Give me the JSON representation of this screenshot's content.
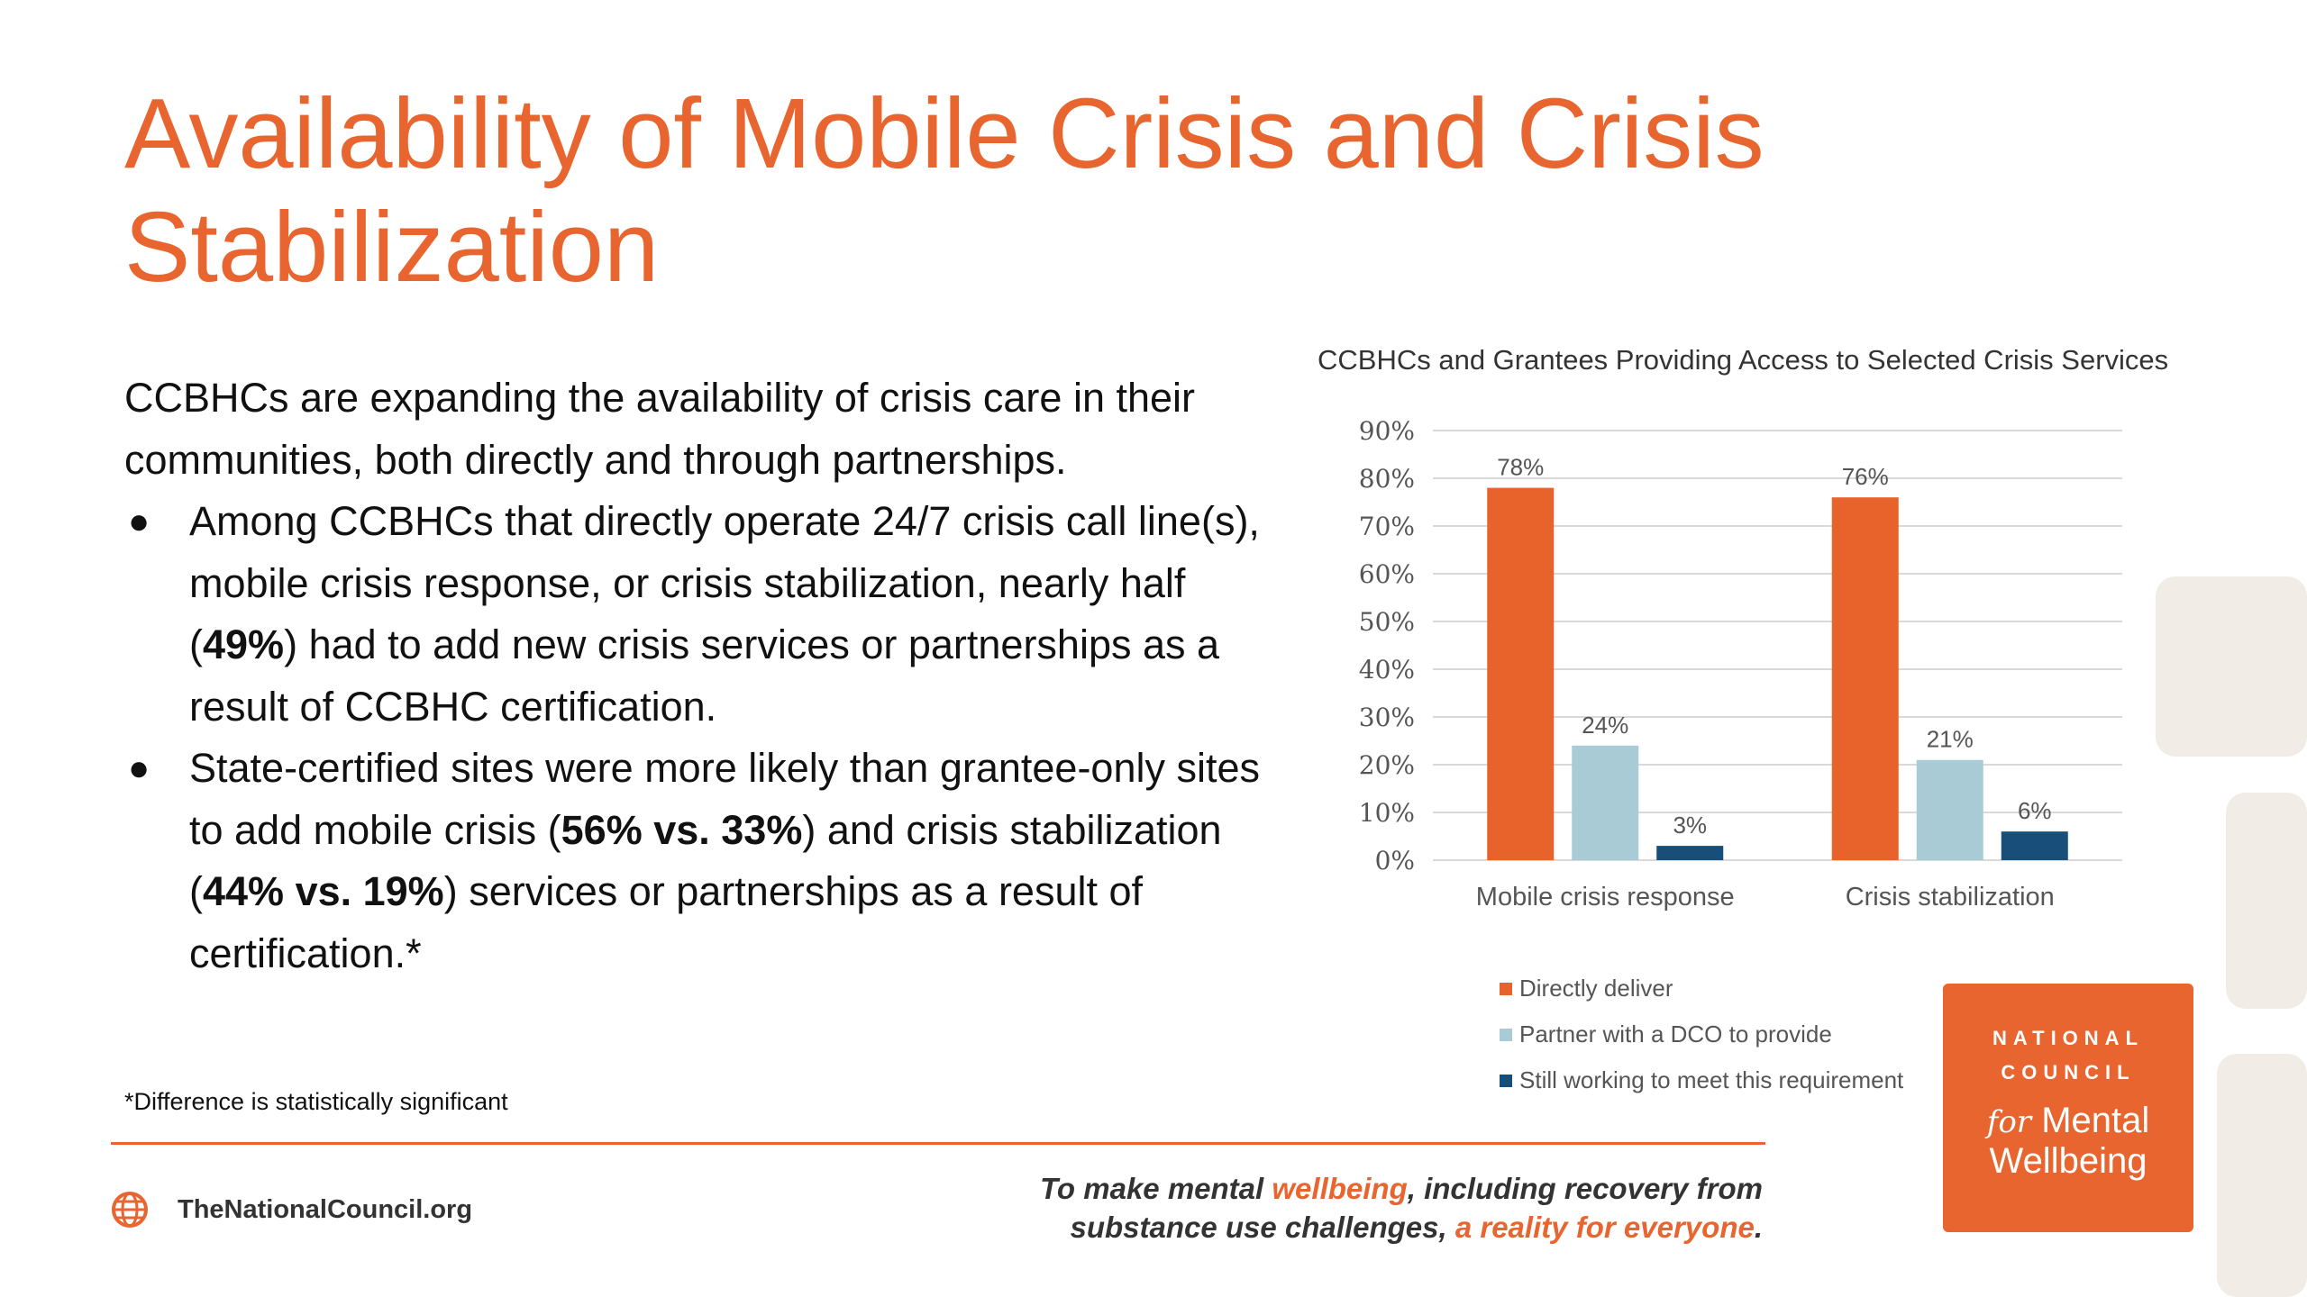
{
  "slide": {
    "title": "Availability of Mobile Crisis and Crisis Stabilization",
    "intro": "CCBHCs are expanding the availability of crisis care in their communities, both directly and through partnerships.",
    "bullet1": {
      "pre": "Among CCBHCs that directly operate 24/7 crisis call line(s), mobile crisis response, or crisis stabilization, nearly half (",
      "b1": "49%",
      "post": ") had to add new crisis services or partnerships as a result of CCBHC certification."
    },
    "bullet2": {
      "pre": "State-certified sites were more likely than grantee-only sites to add mobile crisis (",
      "b1": "56% vs. 33%",
      "mid": ") and crisis stabilization (",
      "b2": "44% vs. 19%",
      "post": ") services or partnerships as a result of certification.*"
    },
    "footnote": "*Difference is statistically significant"
  },
  "footer": {
    "website": "TheNationalCouncil.org",
    "tagline_line1_pre": "To make mental ",
    "tagline_line1_hl": "wellbeing",
    "tagline_line1_post": ", including recovery from",
    "tagline_line2_pre": "substance use challenges, ",
    "tagline_line2_hl": "a reality for everyone",
    "tagline_line2_post": "."
  },
  "logo": {
    "line1": "NATIONAL",
    "line2": "COUNCIL",
    "for_word": "for",
    "line3": "Mental",
    "line4": "Wellbeing"
  },
  "colors": {
    "accent": "#E8652F",
    "series_directly": "#E8622C",
    "series_partner": "#A9CBD6",
    "series_working": "#174E7A"
  },
  "chart_data": {
    "type": "bar",
    "title": "CCBHCs and Grantees Providing Access to Selected Crisis Services",
    "categories": [
      "Mobile crisis response",
      "Crisis stabilization"
    ],
    "series": [
      {
        "name": "Directly deliver",
        "values": [
          78,
          76
        ],
        "labels": [
          "78%",
          "76%"
        ]
      },
      {
        "name": "Partner with a DCO to provide",
        "values": [
          24,
          21
        ],
        "labels": [
          "24%",
          "21%"
        ]
      },
      {
        "name": "Still working to meet this requirement",
        "values": [
          3,
          6
        ],
        "labels": [
          "3%",
          "6%"
        ]
      }
    ],
    "y_ticks": [
      "0%",
      "10%",
      "20%",
      "30%",
      "40%",
      "50%",
      "60%",
      "70%",
      "80%",
      "90%"
    ],
    "ylim": [
      0,
      90
    ],
    "grid": true,
    "legend_position": "bottom-left"
  }
}
